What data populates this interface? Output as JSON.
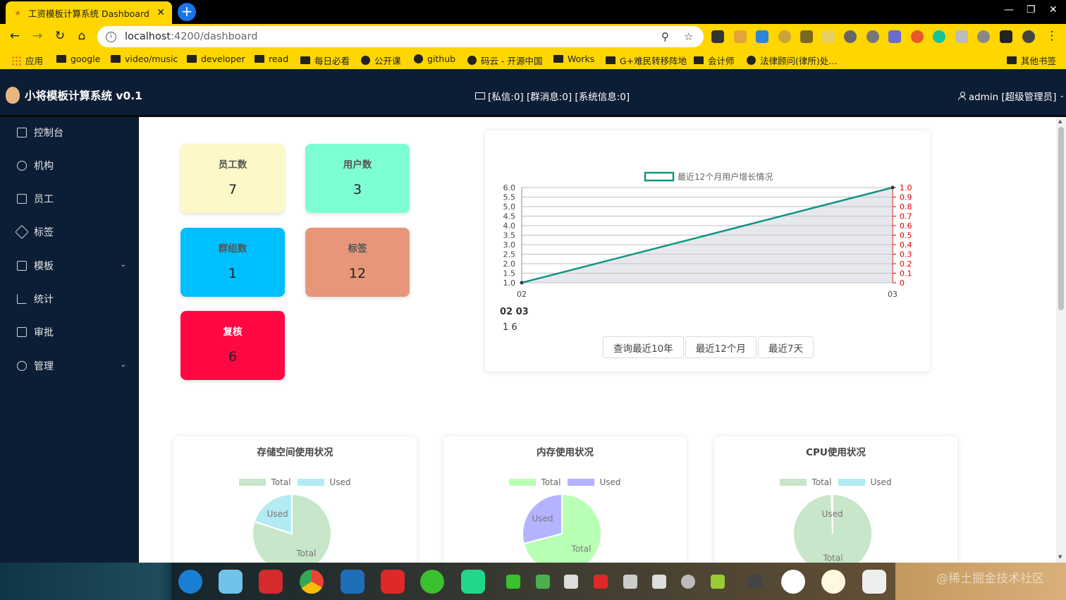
{
  "browser": {
    "tab_title": "工资模板计算系统 Dashboard",
    "url_host": "localhost",
    "url_path": ":4200/dashboard",
    "bookmarks": [
      "应用",
      "google",
      "video/music",
      "developer",
      "read",
      "每日必看",
      "公开课",
      "github",
      "码云 - 开源中国",
      "Works",
      "G+难民转移阵地",
      "会计师",
      "法律顾问(律所)处…",
      "其他书签"
    ]
  },
  "header": {
    "brand": "小将模板计算系统 v0.1",
    "messages": "[私信:0] [群消息:0] [系统信息:0]",
    "user": "admin [超级管理员]"
  },
  "sidebar": {
    "items": [
      {
        "label": "控制台"
      },
      {
        "label": "机构"
      },
      {
        "label": "员工"
      },
      {
        "label": "标签"
      },
      {
        "label": "模板"
      },
      {
        "label": "统计"
      },
      {
        "label": "审批"
      },
      {
        "label": "管理"
      }
    ]
  },
  "stats": [
    {
      "label": "员工数",
      "value": "7",
      "color": "#fdf8c8"
    },
    {
      "label": "用户数",
      "value": "3",
      "color": "#7effd3"
    },
    {
      "label": "群组数",
      "value": "1",
      "color": "#00bfff"
    },
    {
      "label": "标签",
      "value": "12",
      "color": "#e8967a"
    },
    {
      "label": "复核",
      "value": "6",
      "color": "#ff0844"
    }
  ],
  "growth": {
    "summary_x": "02 03",
    "summary_values": "1  6",
    "buttons": [
      "查询最近10年",
      "最近12个月",
      "最近7天"
    ]
  },
  "chart_data": [
    {
      "type": "line",
      "legend": [
        "最近12个月用户增长情况"
      ],
      "x": [
        "02",
        "03"
      ],
      "series": [
        {
          "name": "最近12个月用户增长情况",
          "values": [
            1,
            6
          ]
        }
      ],
      "y_left_ticks": [
        "1.0",
        "1.5",
        "2.0",
        "2.5",
        "3.0",
        "3.5",
        "4.0",
        "4.5",
        "5.0",
        "5.5",
        "6.0"
      ],
      "y_right_ticks": [
        "0",
        "0.1",
        "0.2",
        "0.3",
        "0.4",
        "0.5",
        "0.6",
        "0.7",
        "0.8",
        "0.9",
        "1.0"
      ],
      "ylim": [
        1,
        6
      ],
      "grid": true,
      "line_color": "#109682",
      "right_axis_color": "#e00000"
    },
    {
      "type": "pie",
      "title": "存储空间使用状况",
      "legend": [
        "Total",
        "Used"
      ],
      "values": [
        80,
        20
      ],
      "colors": [
        "#c8e6c9",
        "#b2ebf2"
      ]
    },
    {
      "type": "pie",
      "title": "内存使用状况",
      "legend": [
        "Total",
        "Used"
      ],
      "values": [
        71,
        29
      ],
      "colors": [
        "#b9ffb4",
        "#b3b3ff"
      ]
    },
    {
      "type": "pie",
      "title": "CPU使用状况",
      "legend": [
        "Total",
        "Used"
      ],
      "values": [
        99.5,
        0.5
      ],
      "colors": [
        "#c8e6c9",
        "#b2ebf2"
      ]
    }
  ],
  "watermark": "@稀土掘金技术社区"
}
